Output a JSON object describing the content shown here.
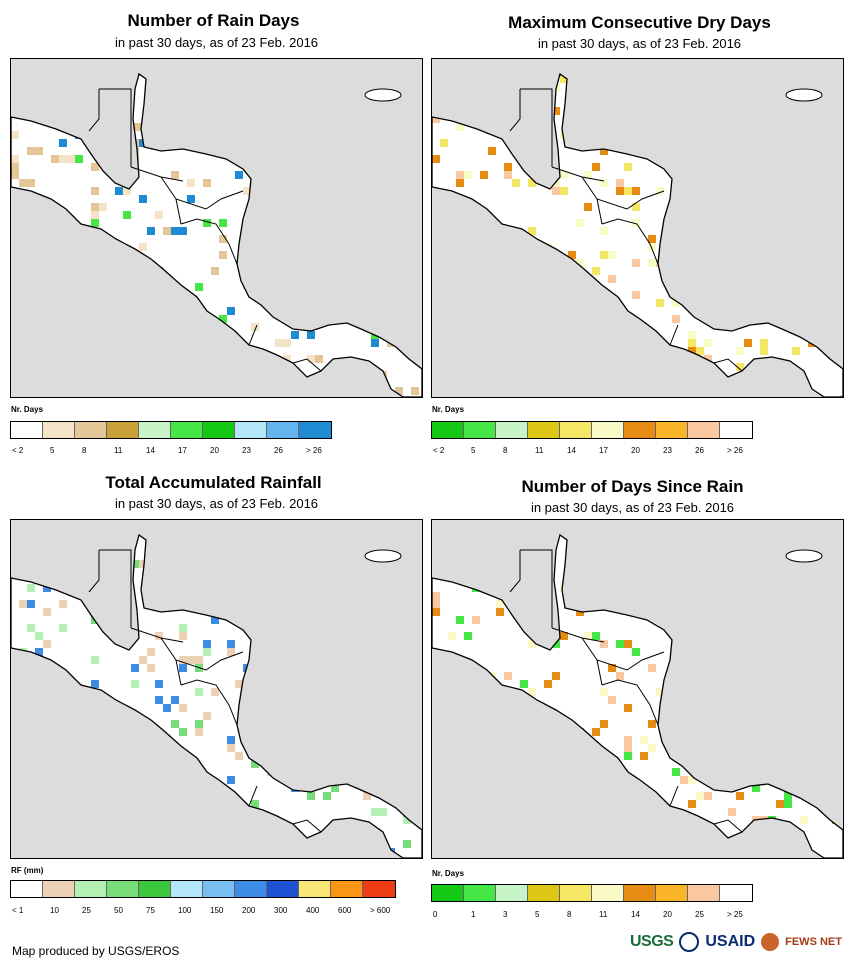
{
  "panels": [
    {
      "title": "Number of Rain Days",
      "subtitle": "in past 30 days, as of 23 Feb. 2016",
      "legend_title": "Nr. Days",
      "legend_colors": [
        "#ffffff",
        "#f5e3c7",
        "#e3c796",
        "#c9a03a",
        "#c8f5c8",
        "#46e646",
        "#14c814",
        "#b4e6fa",
        "#64b4f0",
        "#1e8cd2"
      ],
      "legend_ticks": [
        "< 2",
        "5",
        "8",
        "11",
        "14",
        "17",
        "20",
        "23",
        "26",
        "> 26"
      ],
      "accent_colors": [
        "#e3c796",
        "#f5e3c7",
        "#46e646",
        "#1e8cd2"
      ]
    },
    {
      "title": "Maximum Consecutive Dry Days",
      "subtitle": "in past 30 days, as of 23 Feb. 2016",
      "legend_title": "Nr. Days",
      "legend_colors": [
        "#14c814",
        "#46e646",
        "#c8f5c8",
        "#dcc814",
        "#f5e664",
        "#fafac8",
        "#e68c14",
        "#fab428",
        "#fac8a0",
        "#ffffff"
      ],
      "legend_ticks": [
        "< 2",
        "5",
        "8",
        "11",
        "14",
        "17",
        "20",
        "23",
        "26",
        "> 26"
      ],
      "accent_colors": [
        "#f5e664",
        "#fafac8",
        "#e68c14",
        "#fac8a0"
      ]
    },
    {
      "title": "Total Accumulated Rainfall",
      "subtitle": "in past 30 days, as of 23 Feb. 2016",
      "legend_title": "RF (mm)",
      "legend_colors": [
        "#ffffff",
        "#ebd2b4",
        "#b4f0b4",
        "#78dc78",
        "#3cc83c",
        "#b4e6fa",
        "#78bef0",
        "#3c8ce6",
        "#1e50d2",
        "#fae678",
        "#fa9614",
        "#f03c14"
      ],
      "legend_ticks": [
        "< 1",
        "10",
        "25",
        "50",
        "75",
        "100",
        "150",
        "200",
        "300",
        "400",
        "600",
        "> 600"
      ],
      "accent_colors": [
        "#b4f0b4",
        "#78dc78",
        "#ebd2b4",
        "#3c8ce6"
      ]
    },
    {
      "title": "Number of Days Since Rain",
      "subtitle": "in past 30 days, as of 23 Feb. 2016",
      "legend_title": "Nr. Days",
      "legend_colors": [
        "#14c814",
        "#46e646",
        "#c8f5c8",
        "#dcc814",
        "#f5e664",
        "#fafac8",
        "#e68c14",
        "#fab428",
        "#fac8a0",
        "#ffffff"
      ],
      "legend_ticks": [
        "0",
        "1",
        "3",
        "5",
        "8",
        "11",
        "14",
        "20",
        "25",
        "> 25"
      ],
      "accent_colors": [
        "#fafac8",
        "#e68c14",
        "#46e646",
        "#fac8a0"
      ]
    }
  ],
  "footer": "Map produced by USGS/EROS",
  "logos": {
    "usgs": "USGS",
    "usaid": "USAID",
    "fews": "FEWS NET"
  }
}
